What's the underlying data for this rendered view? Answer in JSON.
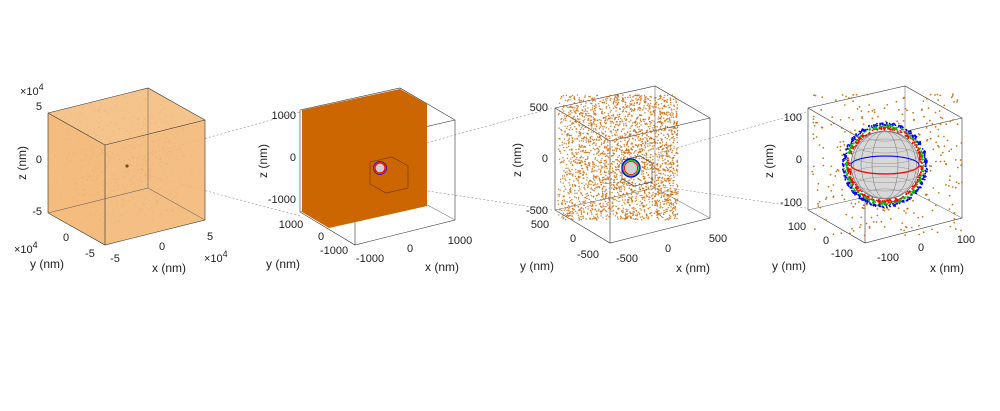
{
  "figure": {
    "panels": [
      {
        "id": "a",
        "z_label": "z (nm)",
        "y_label": "y (nm)",
        "x_label": "x (nm)",
        "z_ticks": [
          "5",
          "0",
          "-5"
        ],
        "y_ticks": [
          "0",
          "-5"
        ],
        "x_ticks": [
          "-5",
          "0",
          "5"
        ],
        "z_multiplier": "×10",
        "z_exponent": "4",
        "y_multiplier": "×10",
        "y_exponent": "4",
        "x_multiplier": "×10",
        "x_exponent": "4",
        "cloud_color": "#f3b878"
      },
      {
        "id": "b",
        "z_label": "z (nm)",
        "y_label": "y (nm)",
        "x_label": "x (nm)",
        "z_ticks": [
          "1000",
          "0",
          "-1000"
        ],
        "y_ticks": [
          "1000",
          "0",
          "-1000"
        ],
        "x_ticks": [
          "-1000",
          "0",
          "1000"
        ],
        "cloud_color": "#cc6600"
      },
      {
        "id": "c",
        "z_label": "z (nm)",
        "y_label": "y (nm)",
        "x_label": "x (nm)",
        "z_ticks": [
          "500",
          "0",
          "-500"
        ],
        "y_ticks": [
          "500",
          "0",
          "-500"
        ],
        "x_ticks": [
          "-500",
          "0",
          "500"
        ],
        "cloud_color": "#cc6600"
      },
      {
        "id": "d",
        "z_label": "z (nm)",
        "y_label": "y (nm)",
        "x_label": "x (nm)",
        "z_ticks": [
          "100",
          "0",
          "-100"
        ],
        "y_ticks": [
          "100",
          "0",
          "-100"
        ],
        "x_ticks": [
          "-100",
          "0",
          "100"
        ],
        "cloud_color": "#cc6600",
        "shell_colors": [
          "#0000ff",
          "#00c000",
          "#ff0000"
        ],
        "sphere_color": "#d8d8d8"
      }
    ]
  }
}
